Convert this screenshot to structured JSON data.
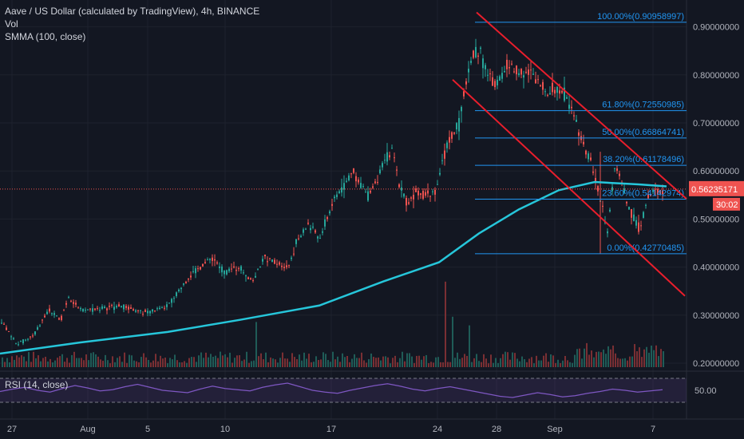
{
  "header": {
    "title": "Aave / US Dollar (calculated by TradingView), 4h, BINANCE",
    "vol_label": "Vol",
    "smma_label": "SMMA (100, close)"
  },
  "rsi": {
    "label": "RSI (14, close)",
    "level_label": "50.00",
    "upper": 70,
    "lower": 30
  },
  "price_tag": {
    "value": "0.56235171",
    "countdown": "30:02",
    "color": "#f23645"
  },
  "colors": {
    "background": "#131722",
    "up": "#26a69a",
    "down": "#ef5350",
    "smma": "#26c6da",
    "fib": "#2196f3",
    "channel": "#e91e2c",
    "rsi": "#7e57c2"
  },
  "chart_data": {
    "type": "candlestick",
    "price_axis": {
      "ticks": [
        "0.90000000",
        "0.80000000",
        "0.70000000",
        "0.60000000",
        "0.50000000",
        "0.40000000",
        "0.30000000",
        "0.20000000"
      ],
      "range": [
        0.18,
        0.93
      ]
    },
    "time_axis": {
      "ticks": [
        "27",
        "Aug",
        "5",
        "10",
        "17",
        "24",
        "28",
        "Sep",
        "7"
      ]
    },
    "price_path": [
      [
        0,
        0.29
      ],
      [
        20,
        0.24
      ],
      [
        40,
        0.255
      ],
      [
        60,
        0.31
      ],
      [
        75,
        0.29
      ],
      [
        85,
        0.34
      ],
      [
        100,
        0.31
      ],
      [
        130,
        0.315
      ],
      [
        150,
        0.32
      ],
      [
        175,
        0.305
      ],
      [
        205,
        0.315
      ],
      [
        215,
        0.33
      ],
      [
        230,
        0.37
      ],
      [
        250,
        0.4
      ],
      [
        265,
        0.42
      ],
      [
        280,
        0.39
      ],
      [
        300,
        0.4
      ],
      [
        315,
        0.37
      ],
      [
        330,
        0.42
      ],
      [
        345,
        0.41
      ],
      [
        360,
        0.4
      ],
      [
        370,
        0.45
      ],
      [
        385,
        0.49
      ],
      [
        400,
        0.46
      ],
      [
        410,
        0.51
      ],
      [
        420,
        0.55
      ],
      [
        430,
        0.57
      ],
      [
        440,
        0.6
      ],
      [
        460,
        0.55
      ],
      [
        470,
        0.58
      ],
      [
        480,
        0.62
      ],
      [
        490,
        0.64
      ],
      [
        500,
        0.57
      ],
      [
        510,
        0.53
      ],
      [
        520,
        0.56
      ],
      [
        530,
        0.55
      ],
      [
        545,
        0.56
      ],
      [
        560,
        0.66
      ],
      [
        575,
        0.7
      ],
      [
        580,
        0.76
      ],
      [
        590,
        0.84
      ],
      [
        600,
        0.85
      ],
      [
        610,
        0.8
      ],
      [
        620,
        0.78
      ],
      [
        635,
        0.82
      ],
      [
        650,
        0.81
      ],
      [
        665,
        0.8
      ],
      [
        680,
        0.77
      ],
      [
        700,
        0.77
      ],
      [
        715,
        0.74
      ],
      [
        730,
        0.65
      ],
      [
        740,
        0.62
      ],
      [
        750,
        0.55
      ],
      [
        760,
        0.47
      ],
      [
        770,
        0.62
      ],
      [
        780,
        0.56
      ],
      [
        790,
        0.51
      ],
      [
        800,
        0.48
      ],
      [
        810,
        0.54
      ],
      [
        820,
        0.56
      ],
      [
        830,
        0.56
      ]
    ],
    "smma": [
      [
        0,
        0.22
      ],
      [
        100,
        0.243
      ],
      [
        210,
        0.265
      ],
      [
        300,
        0.29
      ],
      [
        400,
        0.32
      ],
      [
        480,
        0.37
      ],
      [
        550,
        0.41
      ],
      [
        600,
        0.47
      ],
      [
        650,
        0.52
      ],
      [
        700,
        0.56
      ],
      [
        745,
        0.577
      ],
      [
        800,
        0.572
      ],
      [
        835,
        0.568
      ]
    ],
    "volume_spikes": [
      [
        320,
        0.094
      ],
      [
        557,
        0.178
      ],
      [
        587,
        0.087
      ],
      [
        565,
        0.105
      ],
      [
        735,
        0.05
      ],
      [
        768,
        0.045
      ]
    ],
    "fibonacci": {
      "start_x": 595,
      "end_x": 860,
      "levels": [
        {
          "label": "100.00%(0.90958997)",
          "price": 0.90958997
        },
        {
          "label": "61.80%(0.72550985)",
          "price": 0.72550985
        },
        {
          "label": "50.00%(0.66864741)",
          "price": 0.66864741
        },
        {
          "label": "38.20%(0.61178496)",
          "price": 0.61178496
        },
        {
          "label": "23.60%(0.54142974)",
          "price": 0.54142974
        },
        {
          "label": "0.00%(0.42770485)",
          "price": 0.42770485
        }
      ]
    },
    "channel_lines": [
      {
        "from": [
          597,
          0.93
        ],
        "to": [
          860,
          0.542
        ]
      },
      {
        "from": [
          567,
          0.79
        ],
        "to": [
          858,
          0.34
        ]
      }
    ],
    "current_price": 0.56235171,
    "rsi_values": [
      48,
      52,
      55,
      50,
      47,
      53,
      58,
      54,
      49,
      51,
      56,
      60,
      55,
      50,
      48,
      46,
      52,
      57,
      53,
      51,
      49,
      55,
      59,
      62,
      56,
      50,
      47,
      45,
      50,
      54,
      58,
      61,
      57,
      52,
      49,
      53,
      56,
      52,
      48,
      44,
      40,
      38,
      42,
      46,
      43,
      39,
      41,
      45,
      48,
      52,
      50,
      47,
      49,
      51
    ]
  }
}
